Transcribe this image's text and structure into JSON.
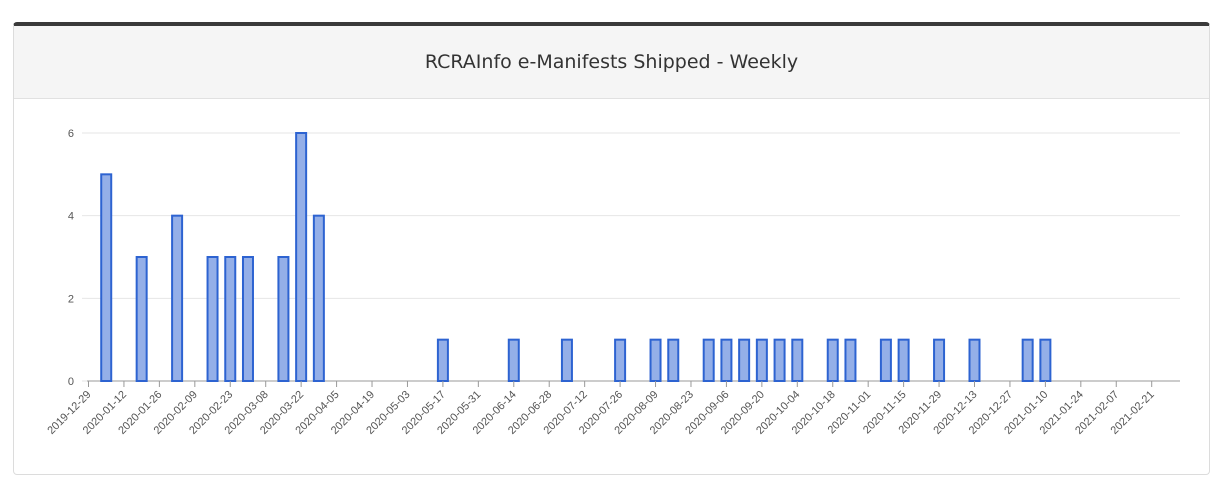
{
  "header": {
    "title": "RCRAInfo e-Manifests Shipped - Weekly"
  },
  "colors": {
    "bar_fill": "#94afe8",
    "bar_stroke": "#2d63d1",
    "grid": "#e6e6e6",
    "axis": "#999999"
  },
  "chart_data": {
    "type": "bar",
    "title": "RCRAInfo e-Manifests Shipped - Weekly",
    "xlabel": "",
    "ylabel": "",
    "ylim": [
      0,
      6
    ],
    "yticks": [
      "0",
      "2",
      "4",
      "6"
    ],
    "grid": true,
    "x_tick_labels": [
      "2019-12-29",
      "2020-01-12",
      "2020-01-26",
      "2020-02-09",
      "2020-02-23",
      "2020-03-08",
      "2020-03-22",
      "2020-04-05",
      "2020-04-19",
      "2020-05-03",
      "2020-05-17",
      "2020-05-31",
      "2020-06-14",
      "2020-06-28",
      "2020-07-12",
      "2020-07-26",
      "2020-08-09",
      "2020-08-23",
      "2020-09-06",
      "2020-09-20",
      "2020-10-04",
      "2020-10-18",
      "2020-11-01",
      "2020-11-15",
      "2020-11-29",
      "2020-12-13",
      "2020-12-27",
      "2021-01-10",
      "2021-01-24",
      "2021-02-07",
      "2021-02-21"
    ],
    "bars": [
      {
        "week": "2020-01-05",
        "value": 5
      },
      {
        "week": "2020-01-19",
        "value": 3
      },
      {
        "week": "2020-02-02",
        "value": 4
      },
      {
        "week": "2020-02-16",
        "value": 3
      },
      {
        "week": "2020-02-23",
        "value": 3
      },
      {
        "week": "2020-03-01",
        "value": 3
      },
      {
        "week": "2020-03-15",
        "value": 3
      },
      {
        "week": "2020-03-22",
        "value": 6
      },
      {
        "week": "2020-03-29",
        "value": 4
      },
      {
        "week": "2020-05-17",
        "value": 1
      },
      {
        "week": "2020-06-14",
        "value": 1
      },
      {
        "week": "2020-07-05",
        "value": 1
      },
      {
        "week": "2020-07-26",
        "value": 1
      },
      {
        "week": "2020-08-09",
        "value": 1
      },
      {
        "week": "2020-08-16",
        "value": 1
      },
      {
        "week": "2020-08-30",
        "value": 1
      },
      {
        "week": "2020-09-06",
        "value": 1
      },
      {
        "week": "2020-09-13",
        "value": 1
      },
      {
        "week": "2020-09-20",
        "value": 1
      },
      {
        "week": "2020-09-27",
        "value": 1
      },
      {
        "week": "2020-10-04",
        "value": 1
      },
      {
        "week": "2020-10-18",
        "value": 1
      },
      {
        "week": "2020-10-25",
        "value": 1
      },
      {
        "week": "2020-11-08",
        "value": 1
      },
      {
        "week": "2020-11-15",
        "value": 1
      },
      {
        "week": "2020-11-29",
        "value": 1
      },
      {
        "week": "2020-12-13",
        "value": 1
      },
      {
        "week": "2021-01-03",
        "value": 1
      },
      {
        "week": "2021-01-10",
        "value": 1
      }
    ]
  }
}
